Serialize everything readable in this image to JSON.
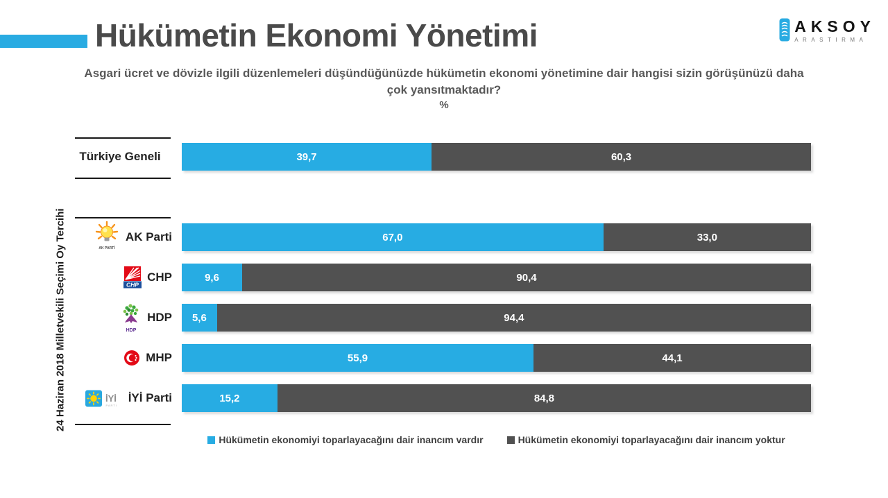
{
  "colors": {
    "vardir": "#27ACE3",
    "yoktur": "#515151",
    "accent": "#29ABE2"
  },
  "header": {
    "title": "Hükümetin Ekonomi Yönetimi",
    "logo_name": "AKSOY",
    "logo_subtitle": "ARASTIRMA"
  },
  "question": {
    "line1": "Asgari ücret ve dövizle ilgili düzenlemeleri düşündüğünüzde hükümetin ekonomi yönetimine dair hangisi sizin görüşünüzü daha",
    "line2": "çok yansıtmaktadır?",
    "unit": "%"
  },
  "axis_label": "24 Haziran 2018 Milletvekili Seçimi Oy Tercihi",
  "legend": [
    {
      "key": "vardir",
      "label": "Hükümetin ekonomiyi toparlayacağını dair inancım vardır"
    },
    {
      "key": "yoktur",
      "label": "Hükümetin ekonomiyi toparlayacağını dair inancım yoktur"
    }
  ],
  "logos": {
    "akp_caption": "AK PARTİ",
    "chp_text": "CHP",
    "hdp_caption": "HDP",
    "iyi_text": "İYİ",
    "iyi_caption": "PARTİ"
  },
  "rows": [
    {
      "id": "turkiye-geneli",
      "group": "overall",
      "label": "Türkiye Geneli",
      "logo": null,
      "vardir": "39,7",
      "yoktur": "60,3",
      "vardir_pct": 39.7
    },
    {
      "id": "ak-parti",
      "group": "party",
      "label": "AK Parti",
      "logo": "akp",
      "vardir": "67,0",
      "yoktur": "33,0",
      "vardir_pct": 67.0
    },
    {
      "id": "chp",
      "group": "party",
      "label": "CHP",
      "logo": "chp",
      "vardir": "9,6",
      "yoktur": "90,4",
      "vardir_pct": 9.6
    },
    {
      "id": "hdp",
      "group": "party",
      "label": "HDP",
      "logo": "hdp",
      "vardir": "5,6",
      "yoktur": "94,4",
      "vardir_pct": 5.6
    },
    {
      "id": "mhp",
      "group": "party",
      "label": "MHP",
      "logo": "mhp",
      "vardir": "55,9",
      "yoktur": "44,1",
      "vardir_pct": 55.9
    },
    {
      "id": "iyi-parti",
      "group": "party",
      "label": "İYİ Parti",
      "logo": "iyi",
      "vardir": "15,2",
      "yoktur": "84,8",
      "vardir_pct": 15.2
    }
  ],
  "chart_data": {
    "type": "bar",
    "orientation": "horizontal_stacked",
    "title": "Hükümetin Ekonomi Yönetimi",
    "subtitle": "Asgari ücret ve dövizle ilgili düzenlemeleri düşündüğünüzde hükümetin ekonomi yönetimine dair hangisi sizin görüşünüzü daha çok yansıtmaktadır?",
    "unit": "%",
    "categories": [
      "Türkiye Geneli",
      "AK Parti",
      "CHP",
      "HDP",
      "MHP",
      "İYİ Parti"
    ],
    "series": [
      {
        "name": "Hükümetin ekonomiyi toparlayacağını dair inancım vardır",
        "color": "#27ACE3",
        "values": [
          39.7,
          67.0,
          9.6,
          5.6,
          55.9,
          15.2
        ]
      },
      {
        "name": "Hükümetin ekonomiyi toparlayacağını dair inancım yoktur",
        "color": "#515151",
        "values": [
          60.3,
          33.0,
          90.4,
          94.4,
          44.1,
          84.8
        ]
      }
    ],
    "xlim": [
      0,
      100
    ],
    "value_labels": true,
    "legend_position": "bottom",
    "group_axis_label": "24 Haziran 2018 Milletvekili Seçimi Oy Tercihi"
  }
}
